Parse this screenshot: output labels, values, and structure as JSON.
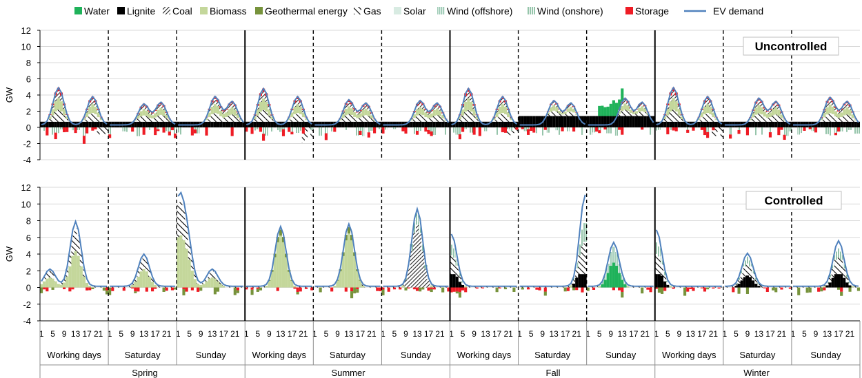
{
  "chart_data": {
    "type": "bar",
    "legend": {
      "placement": "top",
      "items": [
        {
          "name": "Water",
          "color": "#1fb25a",
          "pattern": "solid"
        },
        {
          "name": "Lignite",
          "color": "#000000",
          "pattern": "solid"
        },
        {
          "name": "Coal",
          "color": "#555555",
          "pattern": "dense-hatch"
        },
        {
          "name": "Biomass",
          "color": "#c4d79b",
          "pattern": "solid"
        },
        {
          "name": "Geothermal energy",
          "color": "#77933c",
          "pattern": "solid"
        },
        {
          "name": "Gas",
          "color": "#000000",
          "pattern": "wide-hatch"
        },
        {
          "name": "Solar",
          "color": "#d8ebe2",
          "pattern": "solid"
        },
        {
          "name": "Wind (offshore)",
          "color": "#7fbf9f",
          "pattern": "vertical-lines"
        },
        {
          "name": "Wind (onshore)",
          "color": "#4fa87a",
          "pattern": "vertical-lines"
        },
        {
          "name": "Storage",
          "color": "#ee1c25",
          "pattern": "solid"
        }
      ],
      "line": {
        "name": "EV demand",
        "color": "#4f81bd"
      }
    },
    "hour_ticks": [
      "1",
      "5",
      "9",
      "13",
      "17",
      "21"
    ],
    "day_types": [
      "Working days",
      "Saturday",
      "Sunday"
    ],
    "seasons": [
      "Spring",
      "Summer",
      "Fall",
      "Winter"
    ],
    "panels": [
      {
        "label": "Uncontrolled",
        "ylabel": "GW",
        "ylim": [
          -4,
          12
        ],
        "yticks": [
          "-4",
          "-2",
          "0",
          "2",
          "4",
          "6",
          "8",
          "10",
          "12"
        ],
        "ev_demand_peaks": [
          {
            "season": "Spring",
            "day": "Working days",
            "peaks": [
              [
                7,
                4.9
              ],
              [
                19,
                3.8
              ]
            ]
          },
          {
            "season": "Spring",
            "day": "Saturday",
            "peaks": [
              [
                13,
                2.9
              ],
              [
                19,
                3.1
              ]
            ]
          },
          {
            "season": "Spring",
            "day": "Sunday",
            "peaks": [
              [
                14,
                3.8
              ],
              [
                20,
                3.2
              ]
            ]
          },
          {
            "season": "Summer",
            "day": "Working days",
            "peaks": [
              [
                7,
                4.8
              ],
              [
                19,
                3.8
              ]
            ]
          },
          {
            "season": "Summer",
            "day": "Saturday",
            "peaks": [
              [
                13,
                3.4
              ],
              [
                19,
                3.0
              ]
            ]
          },
          {
            "season": "Summer",
            "day": "Sunday",
            "peaks": [
              [
                14,
                3.3
              ],
              [
                20,
                3.0
              ]
            ]
          },
          {
            "season": "Fall",
            "day": "Working days",
            "peaks": [
              [
                7,
                4.8
              ],
              [
                19,
                3.8
              ]
            ]
          },
          {
            "season": "Fall",
            "day": "Saturday",
            "peaks": [
              [
                13,
                3.3
              ],
              [
                19,
                3.0
              ]
            ]
          },
          {
            "season": "Fall",
            "day": "Sunday",
            "peaks": [
              [
                14,
                3.6
              ],
              [
                20,
                3.1
              ]
            ]
          },
          {
            "season": "Winter",
            "day": "Working days",
            "peaks": [
              [
                7,
                4.9
              ],
              [
                19,
                3.8
              ]
            ]
          },
          {
            "season": "Winter",
            "day": "Saturday",
            "peaks": [
              [
                13,
                3.6
              ],
              [
                19,
                3.2
              ]
            ]
          },
          {
            "season": "Winter",
            "day": "Sunday",
            "peaks": [
              [
                14,
                3.7
              ],
              [
                20,
                3.2
              ]
            ]
          }
        ]
      },
      {
        "label": "Controlled",
        "ylabel": "GW",
        "ylim": [
          -4,
          12
        ],
        "yticks": [
          "-4",
          "-2",
          "0",
          "2",
          "4",
          "6",
          "8",
          "10",
          "12"
        ],
        "ev_demand_peaks": [
          {
            "season": "Spring",
            "day": "Working days",
            "peaks": [
              [
                4,
                2.2
              ],
              [
                13,
                7.9
              ]
            ]
          },
          {
            "season": "Spring",
            "day": "Saturday",
            "peaks": [
              [
                13,
                4.0
              ]
            ]
          },
          {
            "season": "Spring",
            "day": "Sunday",
            "peaks": [
              [
                1,
                9.3
              ],
              [
                4,
                5.8
              ],
              [
                13,
                2.2
              ]
            ]
          },
          {
            "season": "Summer",
            "day": "Working days",
            "peaks": [
              [
                13,
                7.3
              ]
            ]
          },
          {
            "season": "Summer",
            "day": "Saturday",
            "peaks": [
              [
                13,
                7.6
              ]
            ]
          },
          {
            "season": "Summer",
            "day": "Sunday",
            "peaks": [
              [
                13,
                9.4
              ]
            ]
          },
          {
            "season": "Fall",
            "day": "Working days",
            "peaks": [
              [
                1,
                6.4
              ]
            ]
          },
          {
            "season": "Fall",
            "day": "Saturday",
            "peaks": [
              [
                24,
                11.1
              ]
            ]
          },
          {
            "season": "Fall",
            "day": "Sunday",
            "peaks": [
              [
                10,
                5.4
              ]
            ]
          },
          {
            "season": "Winter",
            "day": "Working days",
            "peaks": [
              [
                1,
                6.9
              ]
            ]
          },
          {
            "season": "Winter",
            "day": "Saturday",
            "peaks": [
              [
                9,
                4.1
              ]
            ]
          },
          {
            "season": "Winter",
            "day": "Sunday",
            "peaks": [
              [
                17,
                5.6
              ]
            ]
          }
        ]
      }
    ]
  }
}
